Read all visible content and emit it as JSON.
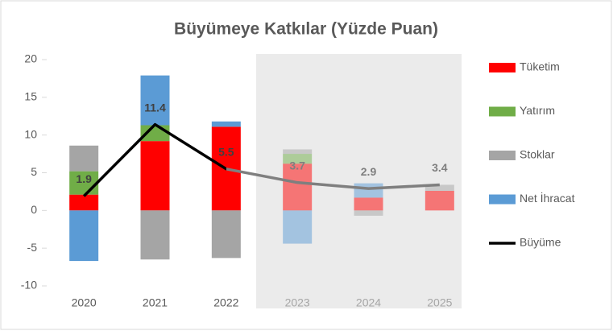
{
  "chart_data": {
    "type": "bar",
    "title": "Büyümeye Katkılar (Yüzde Puan)",
    "categories": [
      "2020",
      "2021",
      "2022",
      "2023",
      "2024",
      "2025"
    ],
    "series": [
      {
        "name": "Tüketim",
        "color": "#ff0000",
        "values": [
          2.1,
          9.2,
          11.1,
          6.2,
          1.7,
          2.6
        ]
      },
      {
        "name": "Yatırım",
        "color": "#70ad47",
        "values": [
          3.1,
          2.1,
          0,
          1.3,
          0,
          0
        ]
      },
      {
        "name": "Stoklar",
        "color": "#a5a5a5",
        "values": [
          3.4,
          -6.5,
          -6.3,
          0.6,
          -0.7,
          0.8
        ]
      },
      {
        "name": "Net İhracat",
        "color": "#5b9bd5",
        "values": [
          -6.7,
          6.6,
          0.7,
          -4.4,
          1.9,
          0
        ]
      },
      {
        "name": "Büyüme",
        "type": "line",
        "color": "#000000",
        "values": [
          1.9,
          11.4,
          5.5,
          3.7,
          2.9,
          3.4
        ]
      }
    ],
    "ylim": [
      -10,
      20
    ],
    "yticks": [
      -10,
      -5,
      0,
      5,
      10,
      15,
      20
    ],
    "grid": false,
    "shaded_from_index": 3,
    "legend": "right"
  }
}
